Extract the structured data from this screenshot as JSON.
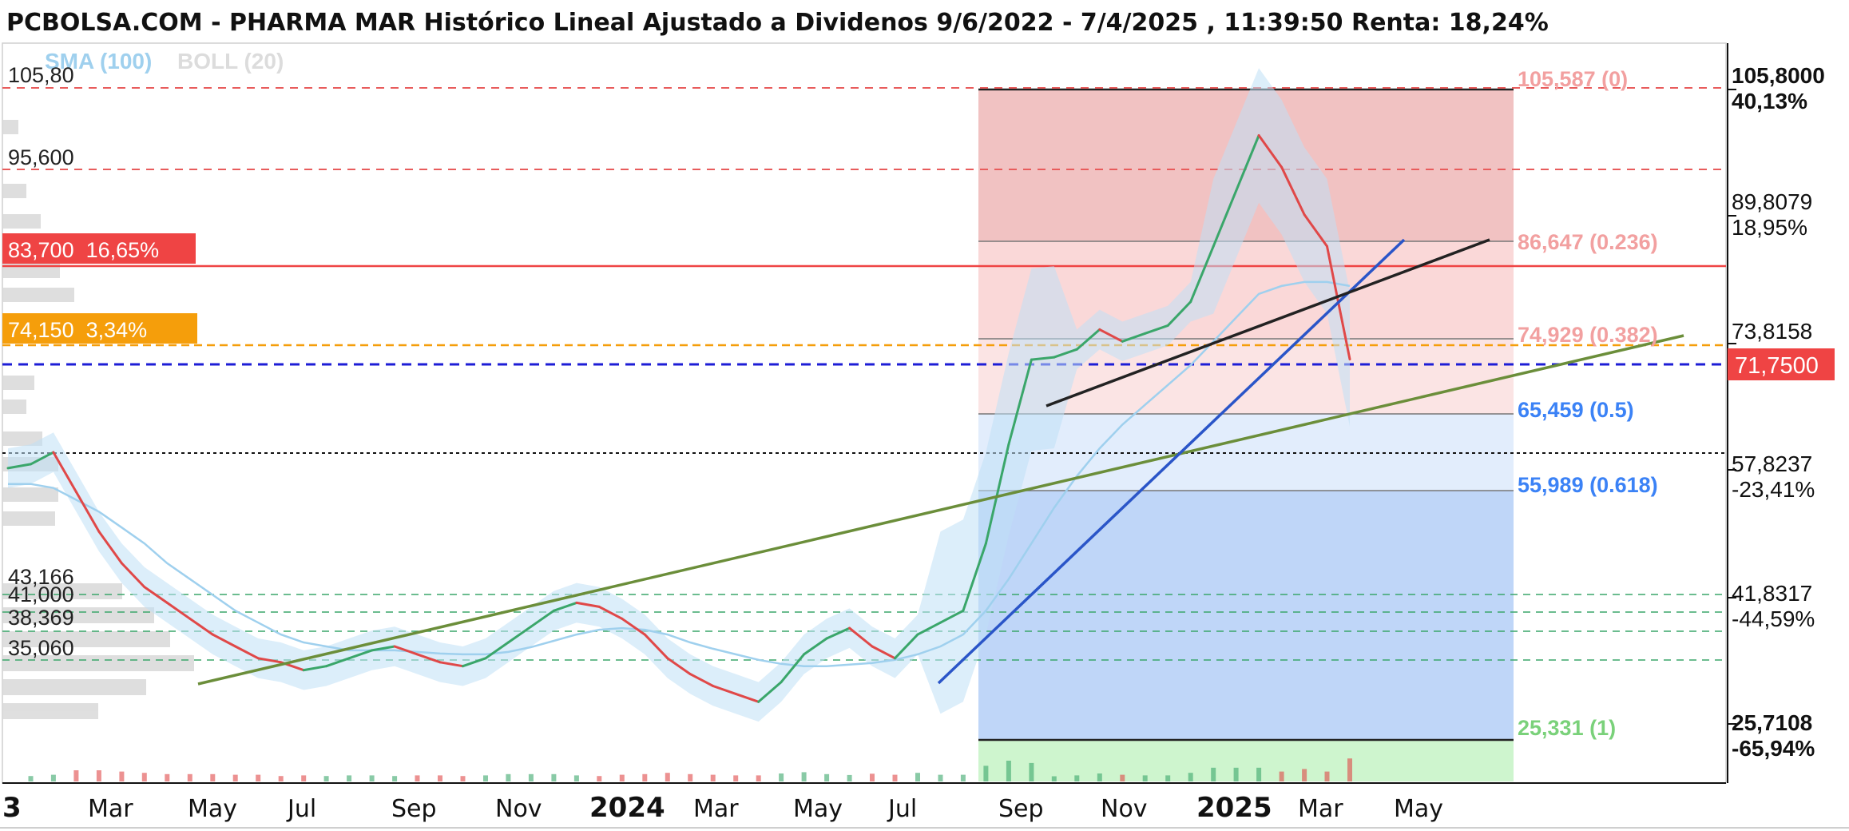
{
  "header": {
    "title": "PCBOLSA.COM - PHARMA MAR Histórico Lineal Ajustado a Dividenos 9/6/2022 - 7/4/2025 , 11:39:50 Renta: 18,24%"
  },
  "legend": {
    "sma": "SMA (100)",
    "boll": "BOLL (20)"
  },
  "colors": {
    "price_up": "#3aa66a",
    "price_down": "#e04848",
    "sma": "#9fd0ee",
    "boll": "#c8c8c8",
    "fib_upper": "#e07070",
    "fib_lower": "#3b82f6",
    "resistance": "#ef4444",
    "support_orange": "#f59e0b",
    "blue_dash": "#1d1dd6",
    "trend_green": "#6b8e3a",
    "trend_blue": "#2a55c8",
    "trend_black": "#222222"
  },
  "right_axis": {
    "max": {
      "price": "105,8000",
      "pct": "40,13%",
      "pct_color": "#1a8a5a"
    },
    "p2": {
      "price": "89,8079",
      "pct": "18,95%",
      "pct_color": "#1a8a5a"
    },
    "p3": {
      "price": "73,8158"
    },
    "current": {
      "price": "71,7500"
    },
    "p5": {
      "price": "57,8237",
      "pct": "-23,41%",
      "pct_color": "#e04848"
    },
    "p6": {
      "price": "41,8317",
      "pct": "-44,59%",
      "pct_color": "#e04848"
    },
    "min": {
      "price": "25,7108",
      "pct": "-65,94%",
      "pct_color": "#e04848"
    }
  },
  "fib_levels": [
    {
      "label": "105,587 (0)",
      "price": 105.587,
      "color": "#f2a0a0"
    },
    {
      "label": "86,647 (0.236)",
      "price": 86.647,
      "color": "#f2a0a0"
    },
    {
      "label": "74,929 (0.382)",
      "price": 74.929,
      "color": "#f2a0a0"
    },
    {
      "label": "65,459 (0.5)",
      "price": 65.459,
      "color": "#3b82f6"
    },
    {
      "label": "55,989 (0.618)",
      "price": 55.989,
      "color": "#3b82f6"
    },
    {
      "label": "25,331 (1)",
      "price": 25.331,
      "color": "#7ad17a"
    }
  ],
  "left_labels": {
    "l105": "105,80",
    "l95": "95,600",
    "resistance": "83,700  16,65%",
    "support": "74,150  3,34%",
    "l43": "43,166",
    "l41": "41,000",
    "l38": "38,369",
    "l35": "35,060"
  },
  "x_axis": {
    "ticks": [
      {
        "label": "3",
        "bold": true
      },
      {
        "label": "Mar",
        "bold": false
      },
      {
        "label": "May",
        "bold": false
      },
      {
        "label": "Jul",
        "bold": false
      },
      {
        "label": "Sep",
        "bold": false
      },
      {
        "label": "Nov",
        "bold": false
      },
      {
        "label": "2024",
        "bold": true
      },
      {
        "label": "Mar",
        "bold": false
      },
      {
        "label": "May",
        "bold": false
      },
      {
        "label": "Jul",
        "bold": false
      },
      {
        "label": "Sep",
        "bold": false
      },
      {
        "label": "Nov",
        "bold": false
      },
      {
        "label": "2025",
        "bold": true
      },
      {
        "label": "Mar",
        "bold": false
      },
      {
        "label": "May",
        "bold": false
      }
    ]
  },
  "chart_data": {
    "type": "line",
    "title": "PCBOLSA.COM - PHARMA MAR Histórico Lineal Ajustado a Dividenos 9/6/2022 - 7/4/2025 , 11:39:50 Renta: 18,24%",
    "xlabel": "",
    "ylabel": "",
    "ylim": [
      25.7108,
      105.8
    ],
    "x": [
      "2023-01",
      "2023-01",
      "2023-02",
      "2023-02",
      "2023-03",
      "2023-03",
      "2023-04",
      "2023-04",
      "2023-05",
      "2023-05",
      "2023-06",
      "2023-06",
      "2023-07",
      "2023-07",
      "2023-08",
      "2023-08",
      "2023-09",
      "2023-09",
      "2023-10",
      "2023-10",
      "2023-11",
      "2023-11",
      "2023-12",
      "2023-12",
      "2024-01",
      "2024-01",
      "2024-02",
      "2024-02",
      "2024-03",
      "2024-03",
      "2024-04",
      "2024-04",
      "2024-05",
      "2024-05",
      "2024-06",
      "2024-06",
      "2024-07",
      "2024-07",
      "2024-08",
      "2024-08",
      "2024-09",
      "2024-09",
      "2024-09",
      "2024-10",
      "2024-10",
      "2024-10",
      "2024-11",
      "2024-11",
      "2024-12",
      "2024-12",
      "2025-01",
      "2025-01",
      "2025-02",
      "2025-02",
      "2025-02",
      "2025-03",
      "2025-03",
      "2025-03",
      "2025-04",
      "2025-04"
    ],
    "series": [
      {
        "values": [
          58,
          58.5,
          60,
          55,
          50,
          46,
          43,
          41,
          39,
          37,
          35.5,
          34,
          33.5,
          32.5,
          33,
          34,
          35,
          35.5,
          34.5,
          33.5,
          33,
          34,
          36,
          38,
          40,
          41,
          40.5,
          39,
          37,
          34,
          32,
          30.5,
          29.5,
          28.5,
          31,
          34.5,
          36.5,
          37.8,
          35.5,
          34,
          37,
          38.5,
          40,
          48.5,
          61,
          71.7,
          72,
          73,
          75.5,
          74,
          75,
          76,
          79,
          86,
          93,
          100,
          96,
          90,
          86,
          71.75
        ]
      },
      {
        "values": [
          56,
          56,
          55.5,
          54,
          52.5,
          50.5,
          48.5,
          46,
          44,
          42,
          40,
          38.5,
          37,
          36,
          35.5,
          35,
          35,
          35,
          34.8,
          34.6,
          34.5,
          34.5,
          34.8,
          35.4,
          36.2,
          37,
          37.6,
          37.8,
          37.6,
          37,
          36,
          35.2,
          34.5,
          33.8,
          33.3,
          33,
          33,
          33.2,
          33.4,
          33.8,
          34.5,
          35.5,
          37,
          40,
          44,
          48.5,
          53,
          57,
          60.5,
          63.5,
          66,
          68.5,
          71,
          74,
          77,
          80,
          81,
          81.5,
          81.5,
          81
        ]
      }
    ],
    "axis_price_ticks": [
      105.8,
      89.8079,
      73.8158,
      57.8237,
      41.8317,
      25.7108
    ],
    "current_price": 71.75,
    "x_tick_labels": [
      "3",
      "Mar",
      "May",
      "Jul",
      "Sep",
      "Nov",
      "2024",
      "Mar",
      "May",
      "Jul",
      "Sep",
      "Nov",
      "2025",
      "Mar",
      "May"
    ],
    "grid": false,
    "legend": "top-left"
  }
}
